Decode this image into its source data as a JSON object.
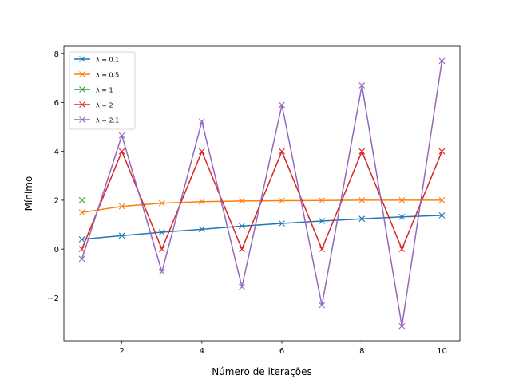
{
  "chart_data": {
    "type": "line",
    "title": "",
    "xlabel": "Número de iterações",
    "ylabel": "Mínimo",
    "xlim": [
      0.55,
      10.45
    ],
    "ylim": [
      -3.75,
      8.3
    ],
    "xticks": [
      2,
      4,
      6,
      8,
      10
    ],
    "yticks": [
      -2,
      0,
      2,
      4,
      6,
      8
    ],
    "ytick_labels": [
      "−2",
      "0",
      "2",
      "4",
      "6",
      "8"
    ],
    "grid": false,
    "legend_position": "top-left",
    "marker": "x",
    "series": [
      {
        "name": "λ = 0.1",
        "color": "#1f77b4",
        "x": [
          1,
          2,
          3,
          4,
          5,
          6,
          7,
          8,
          9,
          10
        ],
        "y": [
          0.4,
          0.55,
          0.69,
          0.81,
          0.94,
          1.05,
          1.15,
          1.24,
          1.32,
          1.38
        ]
      },
      {
        "name": "λ = 0.5",
        "color": "#ff7f0e",
        "x": [
          1,
          2,
          3,
          4,
          5,
          6,
          7,
          8,
          9,
          10
        ],
        "y": [
          1.5,
          1.75,
          1.88,
          1.94,
          1.97,
          1.98,
          1.99,
          2.0,
          2.0,
          2.0
        ]
      },
      {
        "name": "λ = 1",
        "color": "#2ca02c",
        "x": [
          1
        ],
        "y": [
          2.0
        ]
      },
      {
        "name": "λ = 2",
        "color": "#d62728",
        "x": [
          1,
          2,
          3,
          4,
          5,
          6,
          7,
          8,
          9,
          10
        ],
        "y": [
          0,
          4,
          0,
          4,
          0,
          4,
          0,
          4,
          0,
          4
        ]
      },
      {
        "name": "λ = 2.1",
        "color": "#9467bd",
        "x": [
          1,
          2,
          3,
          4,
          5,
          6,
          7,
          8,
          9,
          10
        ],
        "y": [
          -0.4,
          4.65,
          -0.93,
          5.22,
          -1.55,
          5.9,
          -2.3,
          6.7,
          -3.15,
          7.7
        ]
      }
    ]
  }
}
